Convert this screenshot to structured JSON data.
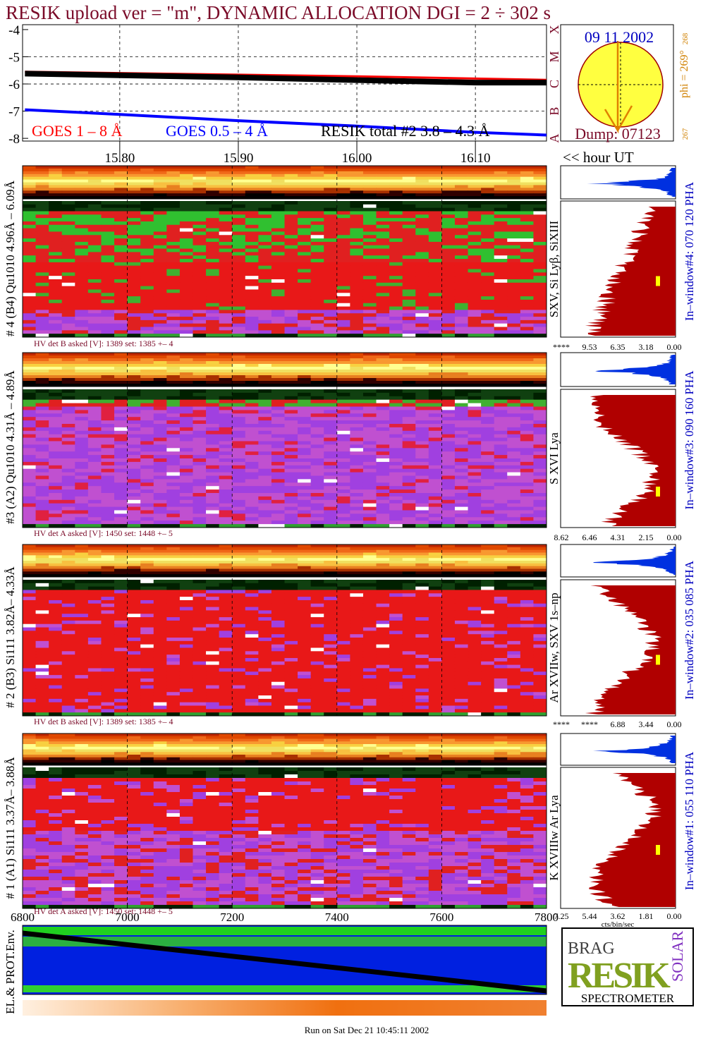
{
  "title": "RESIK upload ver = \"m\", DYNAMIC ALLOCATION  DGI =   2 ÷ 302 s",
  "goes": {
    "ylim": [
      -8.1,
      -3.82
    ],
    "yticks": [
      -4,
      -5,
      -6,
      -7,
      -8
    ],
    "xlim": [
      15.718,
      16.16
    ],
    "xticks": [
      {
        "value": 15.8,
        "label": "15.80"
      },
      {
        "value": 15.9,
        "label": "15.90"
      },
      {
        "value": 16.0,
        "label": "16.00"
      },
      {
        "value": 16.1,
        "label": "16.10"
      }
    ],
    "x": [
      15.72,
      15.8,
      15.9,
      16.0,
      16.1,
      16.16
    ],
    "series": [
      {
        "name": "GOES 1 – 8 Å",
        "color": "#ff0000",
        "values": [
          -5.55,
          -5.6,
          -5.66,
          -5.72,
          -5.8,
          -5.85
        ]
      },
      {
        "name": "GOES 0.5 – 4 Å",
        "color": "#0000ff",
        "values": [
          -6.95,
          -7.12,
          -7.35,
          -7.55,
          -7.78,
          -7.88
        ]
      },
      {
        "name": "RESIK total #2  3.8 – 4.3 Å",
        "color": "#000000",
        "values": [
          -5.62,
          -5.68,
          -5.76,
          -5.86,
          -5.95,
          -5.95
        ]
      }
    ],
    "class_letters": [
      "A",
      "B",
      "C",
      "M",
      "X"
    ],
    "time_unit": "<< hour UT"
  },
  "sun": {
    "date": "09 11 2002",
    "dump": "Dump: 07123",
    "phi": "phi = 269°",
    "phi_max": "268",
    "phi_min": "267"
  },
  "panels": [
    {
      "label": "# 4 (B4) Qu1010 4.96Å – 6.09Å",
      "hv": "HV det B asked [V]:  1389 set:  1385 +–   4",
      "lines": "SXV, Si Lyβ, SiXIII",
      "window": "In–window#4:  070 120 PHA",
      "scale": [
        "****",
        "9.53",
        "6.35",
        "3.18",
        "0.00"
      ]
    },
    {
      "label": "#3 (A2) Qu1010  4.31Å – 4.89Å",
      "hv": "HV det A asked [V]:  1450 set:  1448 +–   5",
      "lines": "S XVI Lya",
      "window": "In–window#3:  090 160 PHA",
      "scale": [
        "8.62",
        "6.46",
        "4.31",
        "2.15",
        "0.00"
      ]
    },
    {
      "label": "# 2 (B3) Si111  3.82Å– 4.33Å",
      "hv": "HV det B asked [V]:  1389 set:  1385 +–   4",
      "lines": "Ar XVIIw,  SXV 1s–np",
      "window": "In–window#2:  035 085 PHA",
      "scale": [
        "****",
        "****",
        "6.88",
        "3.44",
        "0.00"
      ]
    },
    {
      "label": "# 1 (A1) Si111  3.37Å– 3.88Å",
      "hv": "HV det A asked [V]:  1450 set:  1448 +–   5",
      "lines": "K XVIIIw   Ar Lya",
      "window": "In–window#1:  055 110 PHA",
      "scale": [
        "7.25",
        "5.44",
        "3.62",
        "1.81",
        "0.00"
      ]
    }
  ],
  "scale_unit": "cts/bin/sec",
  "env": {
    "label": "EL.& PROT.Env.",
    "xlim": [
      6800,
      7800
    ],
    "xticks": [
      6800,
      7000,
      7200,
      7400,
      7600,
      7800
    ]
  },
  "logo": {
    "top": "BRAG",
    "middle": "RESIK",
    "side": "SOLAR",
    "bottom": "SPECTROMETER"
  },
  "footer": "Run on Sat Dec 21 10:45:11 2002"
}
